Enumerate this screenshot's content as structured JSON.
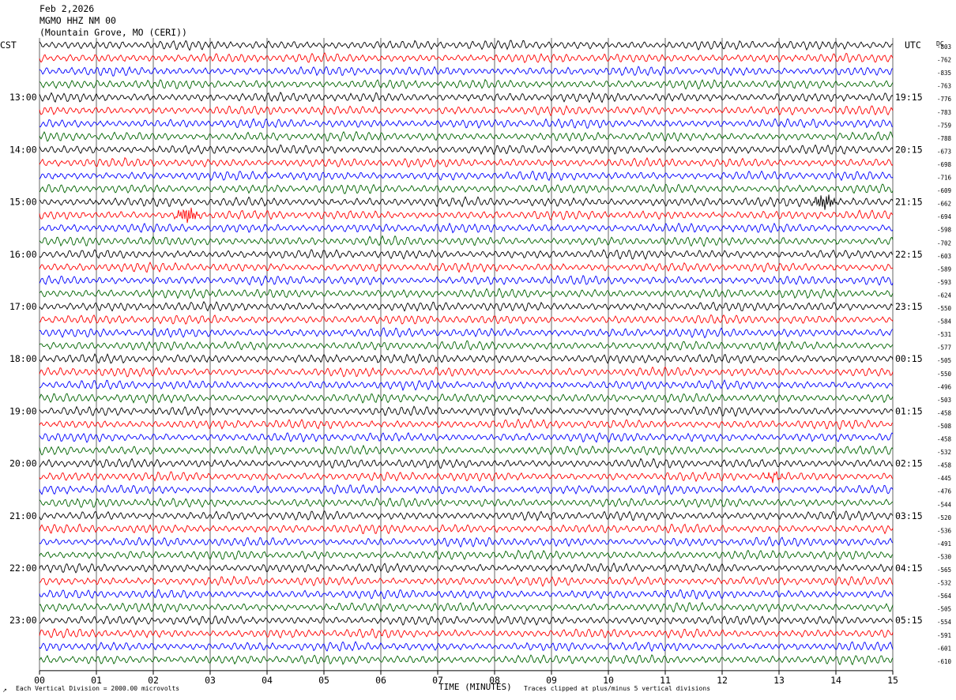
{
  "header": {
    "date": "Feb 2,2026",
    "station": "MGMO HHZ NM 00",
    "location": "(Mountain Grove, MO (CERI))"
  },
  "left_zone_label": "CST",
  "right_zone_label": "UTC",
  "dc_label": "DC",
  "footer": {
    "scale_note": "Each Vertical Division = 2000.00 microvolts",
    "xlabel": "TIME (MINUTES)",
    "clip_note": "Traces clipped at plus/minus 5 vertical divisions"
  },
  "colors": {
    "trace_cycle": [
      "#000000",
      "#ff0000",
      "#0000ff",
      "#006400"
    ],
    "grid": "#000000",
    "text": "#000000"
  },
  "chart_data": {
    "type": "line",
    "subtype": "helicorder",
    "x_ticks": [
      "00",
      "01",
      "02",
      "03",
      "04",
      "05",
      "06",
      "07",
      "08",
      "09",
      "10",
      "11",
      "12",
      "13",
      "14",
      "15"
    ],
    "xlim": [
      0,
      15
    ],
    "line_minutes": 15,
    "left_time_labels": [
      {
        "line": 4,
        "label": "13:00"
      },
      {
        "line": 8,
        "label": "14:00"
      },
      {
        "line": 12,
        "label": "15:00"
      },
      {
        "line": 16,
        "label": "16:00"
      },
      {
        "line": 20,
        "label": "17:00"
      },
      {
        "line": 24,
        "label": "18:00"
      },
      {
        "line": 28,
        "label": "19:00"
      },
      {
        "line": 32,
        "label": "20:00"
      },
      {
        "line": 36,
        "label": "21:00"
      },
      {
        "line": 40,
        "label": "22:00"
      },
      {
        "line": 44,
        "label": "23:00"
      }
    ],
    "right_time_labels": [
      {
        "line": 4,
        "label": "19:15"
      },
      {
        "line": 8,
        "label": "20:15"
      },
      {
        "line": 12,
        "label": "21:15"
      },
      {
        "line": 16,
        "label": "22:15"
      },
      {
        "line": 20,
        "label": "23:15"
      },
      {
        "line": 24,
        "label": "00:15"
      },
      {
        "line": 28,
        "label": "01:15"
      },
      {
        "line": 32,
        "label": "02:15"
      },
      {
        "line": 36,
        "label": "03:15"
      },
      {
        "line": 40,
        "label": "04:15"
      },
      {
        "line": 44,
        "label": "05:15"
      }
    ],
    "dc_offsets": [
      "-803",
      "-762",
      "-835",
      "-763",
      "-776",
      "-783",
      "-759",
      "-788",
      "-673",
      "-698",
      "-716",
      "-609",
      "-662",
      "-694",
      "-598",
      "-702",
      "-603",
      "-589",
      "-593",
      "-624",
      "-550",
      "-584",
      "-531",
      "-577",
      "-505",
      "-550",
      "-496",
      "-503",
      "-458",
      "-508",
      "-458",
      "-532",
      "-458",
      "-445",
      "-476",
      "-544",
      "-520",
      "-536",
      "-491",
      "-530",
      "-565",
      "-532",
      "-564",
      "-505",
      "-554",
      "-591",
      "-601",
      "-610"
    ],
    "trace_count": 48,
    "events": [
      {
        "line": 12,
        "minute": 13.8,
        "amplitude": "large"
      },
      {
        "line": 13,
        "minute": 2.6,
        "amplitude": "large"
      },
      {
        "line": 33,
        "minute": 12.9,
        "amplitude": "medium"
      }
    ]
  }
}
